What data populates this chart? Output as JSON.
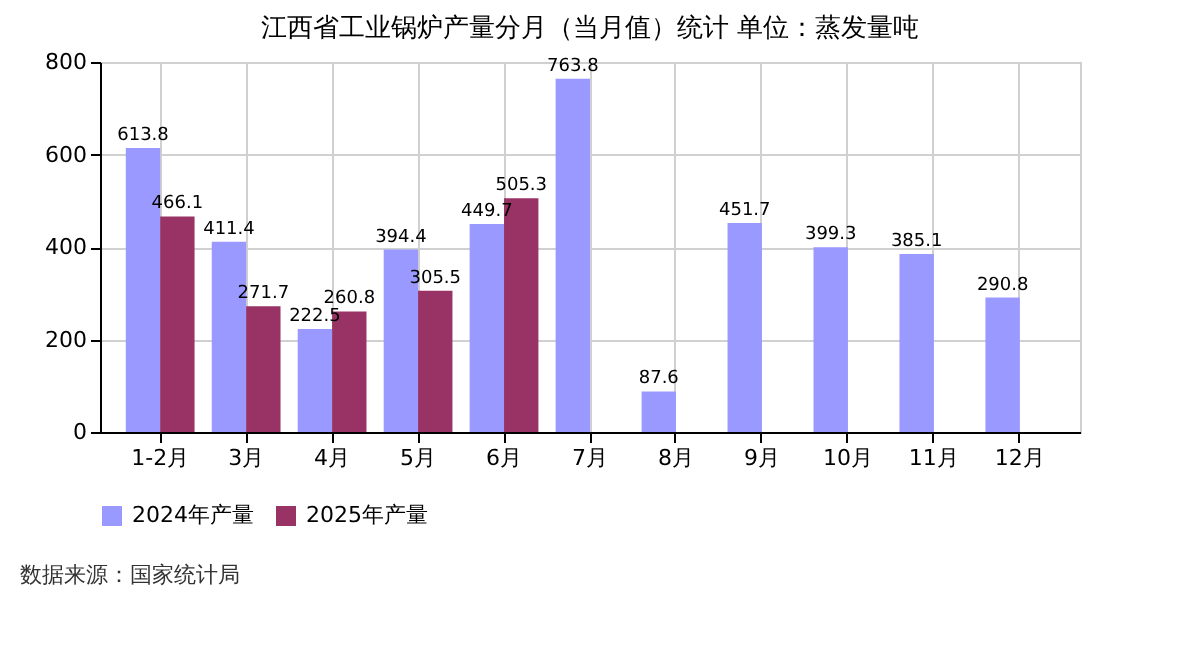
{
  "chart_data": {
    "type": "bar",
    "title": "江西省工业锅炉产量分月（当月值）统计  单位：蒸发量吨",
    "categories": [
      "1-2月",
      "3月",
      "4月",
      "5月",
      "6月",
      "7月",
      "8月",
      "9月",
      "10月",
      "11月",
      "12月"
    ],
    "series": [
      {
        "name": "2024年产量",
        "color": "#9999ff",
        "values": [
          613.8,
          411.4,
          222.5,
          394.4,
          449.7,
          763.8,
          87.6,
          451.7,
          399.3,
          385.1,
          290.8
        ]
      },
      {
        "name": "2025年产量",
        "color": "#993366",
        "values": [
          466.1,
          271.7,
          260.8,
          305.5,
          505.3,
          null,
          null,
          null,
          null,
          null,
          null
        ]
      }
    ],
    "ylim": [
      0,
      800
    ],
    "yticks": [
      0,
      200,
      400,
      600,
      800
    ],
    "grid": true,
    "legend": "bottom",
    "data_labels": true,
    "annotations": [
      "数据来源：国家统计局"
    ]
  }
}
